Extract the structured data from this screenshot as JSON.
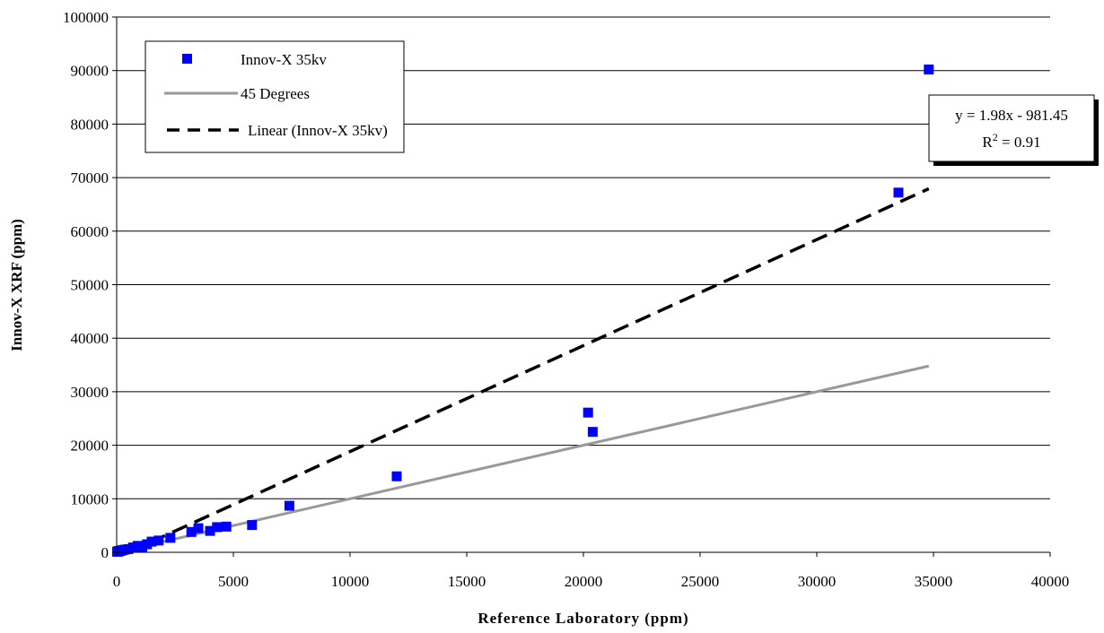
{
  "chart_data": {
    "type": "scatter",
    "xlabel": "Reference Laboratory (ppm)",
    "ylabel": "Innov-X XRF (ppm)",
    "xlim": [
      0,
      40000
    ],
    "ylim": [
      0,
      100000
    ],
    "x_ticks": [
      0,
      5000,
      10000,
      15000,
      20000,
      25000,
      30000,
      35000,
      40000
    ],
    "y_ticks": [
      0,
      10000,
      20000,
      30000,
      40000,
      50000,
      60000,
      70000,
      80000,
      90000,
      100000
    ],
    "x_tick_labels": [
      "0",
      "5000",
      "10000",
      "15000",
      "20000",
      "25000",
      "30000",
      "35000",
      "40000"
    ],
    "y_tick_labels": [
      "0",
      "10000",
      "20000",
      "30000",
      "40000",
      "50000",
      "60000",
      "70000",
      "80000",
      "90000",
      "100000"
    ],
    "grid": "horizontal",
    "legend_position": "top-left",
    "series": [
      {
        "name": "Innov-X 35kv",
        "kind": "scatter",
        "color": "#0000ff",
        "points": [
          [
            20,
            100
          ],
          [
            50,
            200
          ],
          [
            80,
            150
          ],
          [
            120,
            250
          ],
          [
            180,
            300
          ],
          [
            250,
            400
          ],
          [
            350,
            500
          ],
          [
            500,
            600
          ],
          [
            700,
            900
          ],
          [
            900,
            1200
          ],
          [
            1100,
            900
          ],
          [
            1300,
            1500
          ],
          [
            1500,
            2000
          ],
          [
            1800,
            2200
          ],
          [
            2300,
            2700
          ],
          [
            3200,
            3800
          ],
          [
            3500,
            4500
          ],
          [
            4000,
            4000
          ],
          [
            4300,
            4700
          ],
          [
            4700,
            4800
          ],
          [
            5800,
            5100
          ],
          [
            7400,
            8700
          ],
          [
            12000,
            14200
          ],
          [
            20200,
            26100
          ],
          [
            20400,
            22500
          ],
          [
            33500,
            67200
          ],
          [
            34800,
            90200
          ]
        ]
      },
      {
        "name": "45 Degrees",
        "kind": "line",
        "color": "#999999",
        "points": [
          [
            0,
            0
          ],
          [
            7400,
            7400
          ],
          [
            34800,
            34800
          ]
        ]
      },
      {
        "name": "Linear (Innov-X 35kv)",
        "kind": "trendline",
        "color": "#000000",
        "slope": 1.98,
        "intercept": -981.45,
        "x_range": [
          0,
          34800
        ]
      }
    ],
    "annotation": {
      "equation": "y = 1.98x - 981.45",
      "r2_prefix": "R",
      "r2_sup": "2",
      "r2_value": " = 0.91"
    }
  }
}
